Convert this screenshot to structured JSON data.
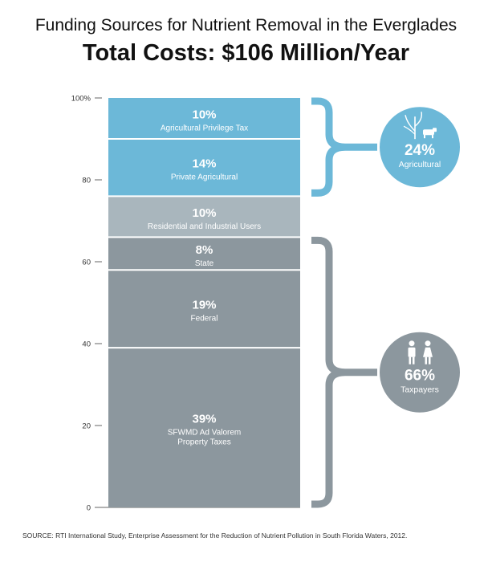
{
  "header": {
    "title": "Funding Sources for Nutrient Removal in the Everglades",
    "subtitle": "Total Costs: $106 Million/Year"
  },
  "chart_data": {
    "type": "bar",
    "stacked": true,
    "ylim": [
      0,
      100
    ],
    "y_ticks": [
      "0",
      "20",
      "40",
      "60",
      "80",
      "100%"
    ],
    "y_tick_values": [
      0,
      20,
      40,
      60,
      80,
      100
    ],
    "segments": [
      {
        "pct_label": "39%",
        "value": 39,
        "label_lines": [
          "SFWMD Ad Valorem",
          "Property Taxes"
        ],
        "color": "#8c979e",
        "group": "taxpayers"
      },
      {
        "pct_label": "19%",
        "value": 19,
        "label_lines": [
          "Federal"
        ],
        "color": "#8c979e",
        "group": "taxpayers"
      },
      {
        "pct_label": "8%",
        "value": 8,
        "label_lines": [
          "State"
        ],
        "color": "#8c979e",
        "group": "taxpayers"
      },
      {
        "pct_label": "10%",
        "value": 10,
        "label_lines": [
          "Residential and Industrial Users"
        ],
        "color": "#a9b6bd",
        "group": "other"
      },
      {
        "pct_label": "14%",
        "value": 14,
        "label_lines": [
          "Private Agricultural"
        ],
        "color": "#6cb8d8",
        "group": "agricultural"
      },
      {
        "pct_label": "10%",
        "value": 10,
        "label_lines": [
          "Agricultural Privilege Tax"
        ],
        "color": "#6cb8d8",
        "group": "agricultural"
      }
    ],
    "groups": [
      {
        "id": "agricultural",
        "pct_label": "24%",
        "name": "Agricultural",
        "color": "#6cb8d8",
        "icon": "sugarcane-cow-icon",
        "from": 76,
        "to": 100
      },
      {
        "id": "taxpayers",
        "pct_label": "66%",
        "name": "Taxpayers",
        "color": "#8c979e",
        "icon": "people-icon",
        "from": 0,
        "to": 66
      }
    ]
  },
  "footer": {
    "source": "SOURCE: RTI International Study, Enterprise Assessment for the Reduction of Nutrient Pollution in South Florida Waters, 2012."
  }
}
